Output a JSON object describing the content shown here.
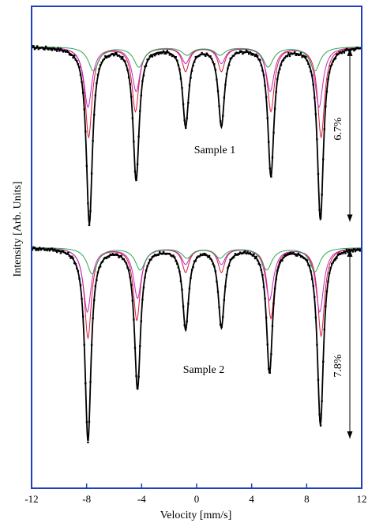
{
  "chart_data": {
    "type": "line",
    "title": "",
    "xlabel": "Velocity [mm/s]",
    "ylabel": "Intensity [Arb. Units]",
    "xlim": [
      -12,
      12
    ],
    "ylim": [
      -2.2,
      0.2
    ],
    "xticks": [
      -12,
      -8,
      -4,
      0,
      4,
      8,
      12
    ],
    "y_tick_labels": false,
    "grid": false,
    "legend": "none",
    "colors": {
      "data": "#000000",
      "fit_total": "#000000",
      "component_1": "#d81b3c",
      "component_2": "#c02ac0",
      "component_3": "#2ea84a",
      "axes": "#1f3fbf"
    },
    "panels": [
      {
        "label": "Sample 1",
        "offset": 0,
        "depth_annotation": "6.7%",
        "line_positions": [
          -7.8,
          -4.4,
          -0.8,
          1.8,
          5.4,
          9.0
        ],
        "total_depths": [
          0.88,
          0.66,
          0.39,
          0.39,
          0.64,
          0.86
        ],
        "components": [
          {
            "lines": [
              -7.85,
              -4.45,
              -0.8,
              1.8,
              5.4,
              9.05
            ],
            "depths": [
              0.45,
              0.32,
              0.12,
              0.12,
              0.32,
              0.45
            ],
            "width": 0.3
          },
          {
            "lines": [
              -7.9,
              -4.4,
              -0.8,
              1.8,
              5.35,
              8.9
            ],
            "depths": [
              0.3,
              0.22,
              0.08,
              0.08,
              0.22,
              0.3
            ],
            "width": 0.35
          },
          {
            "lines": [
              -7.5,
              -4.2,
              -0.7,
              1.7,
              5.2,
              8.6
            ],
            "depths": [
              0.12,
              0.1,
              0.04,
              0.04,
              0.1,
              0.12
            ],
            "width": 0.45
          }
        ]
      },
      {
        "label": "Sample 2",
        "offset": -1.0,
        "depth_annotation": "7.8%",
        "line_positions": [
          -7.9,
          -4.3,
          -0.8,
          1.8,
          5.3,
          9.0
        ],
        "total_depths": [
          0.96,
          0.7,
          0.4,
          0.39,
          0.62,
          0.88
        ],
        "components": [
          {
            "lines": [
              -7.9,
              -4.35,
              -0.8,
              1.8,
              5.4,
              9.05
            ],
            "depths": [
              0.45,
              0.36,
              0.12,
              0.12,
              0.35,
              0.44
            ],
            "width": 0.3
          },
          {
            "lines": [
              -7.95,
              -4.3,
              -0.8,
              1.8,
              5.3,
              8.95
            ],
            "depths": [
              0.32,
              0.25,
              0.08,
              0.08,
              0.26,
              0.32
            ],
            "width": 0.35
          },
          {
            "lines": [
              -7.6,
              -4.1,
              -0.7,
              1.7,
              5.1,
              8.6
            ],
            "depths": [
              0.13,
              0.11,
              0.05,
              0.05,
              0.11,
              0.12
            ],
            "width": 0.45
          }
        ]
      }
    ]
  }
}
